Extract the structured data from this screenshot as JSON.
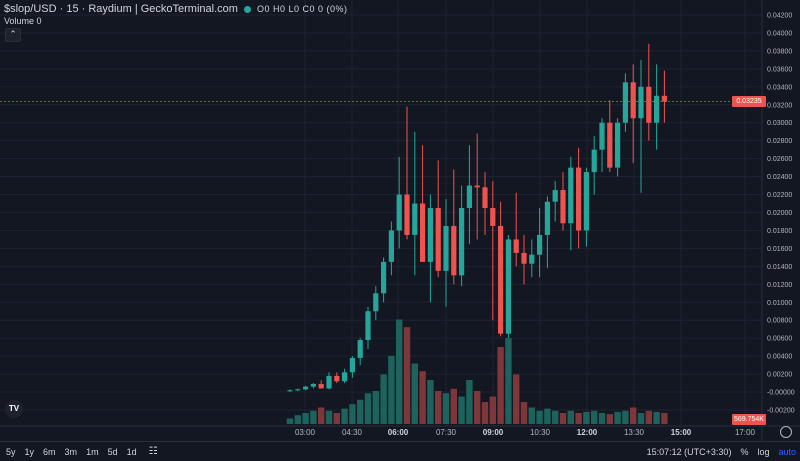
{
  "header": {
    "symbol": "$slop/USD · 15 · Raydium | GeckoTerminal.com",
    "ohlc_text": "O0 H0 L0 C0 0 (0%)",
    "volume_label": "Volume 0",
    "collapse_icon": "chevron-up-icon"
  },
  "price_tags": {
    "last_price": "0.03235",
    "volume_last": "569.754K"
  },
  "colors": {
    "up": "#26a69a",
    "down": "#ef5350",
    "background": "#131722",
    "price_line": "#ef5350"
  },
  "chart_data": {
    "type": "candlestick",
    "title": "$slop/USD · 15 · Raydium",
    "x_ticks": [
      "03:00",
      "04:30",
      "06:00",
      "07:30",
      "09:00",
      "10:30",
      "12:00",
      "13:30",
      "15:00",
      "17:00"
    ],
    "x_ticks_bold": [
      "06:00",
      "09:00",
      "12:00",
      "15:00"
    ],
    "y_ticks": [
      "0.04200",
      "0.04000",
      "0.03800",
      "0.03600",
      "0.03400",
      "0.03200",
      "0.03000",
      "0.02800",
      "0.02600",
      "0.02400",
      "0.02200",
      "0.02000",
      "0.01800",
      "0.01600",
      "0.01400",
      "0.01200",
      "0.01000",
      "0.00800",
      "0.00600",
      "0.00400",
      "0.00200",
      "-0.00000",
      "-0.00200"
    ],
    "y_tick_values": [
      0.042,
      0.04,
      0.038,
      0.036,
      0.034,
      0.032,
      0.03,
      0.028,
      0.026,
      0.024,
      0.022,
      0.02,
      0.018,
      0.016,
      0.014,
      0.012,
      0.01,
      0.008,
      0.006,
      0.004,
      0.002,
      0.0,
      -0.002
    ],
    "last_price": 0.03235,
    "candles": [
      {
        "o": 0.0001,
        "h": 0.0003,
        "l": 0.0,
        "c": 0.0002
      },
      {
        "o": 0.0002,
        "h": 0.0004,
        "l": 0.0001,
        "c": 0.0003
      },
      {
        "o": 0.0003,
        "h": 0.0007,
        "l": 0.0002,
        "c": 0.0006
      },
      {
        "o": 0.0006,
        "h": 0.001,
        "l": 0.0004,
        "c": 0.0009
      },
      {
        "o": 0.0009,
        "h": 0.0013,
        "l": 0.0004,
        "c": 0.0004
      },
      {
        "o": 0.0004,
        "h": 0.0022,
        "l": 0.0003,
        "c": 0.0018
      },
      {
        "o": 0.0018,
        "h": 0.0022,
        "l": 0.001,
        "c": 0.0012
      },
      {
        "o": 0.0012,
        "h": 0.0026,
        "l": 0.001,
        "c": 0.0022
      },
      {
        "o": 0.0022,
        "h": 0.004,
        "l": 0.0016,
        "c": 0.0038
      },
      {
        "o": 0.0038,
        "h": 0.006,
        "l": 0.003,
        "c": 0.0058
      },
      {
        "o": 0.0058,
        "h": 0.0095,
        "l": 0.0048,
        "c": 0.009
      },
      {
        "o": 0.009,
        "h": 0.0118,
        "l": 0.008,
        "c": 0.011
      },
      {
        "o": 0.011,
        "h": 0.015,
        "l": 0.01,
        "c": 0.0145
      },
      {
        "o": 0.0145,
        "h": 0.019,
        "l": 0.013,
        "c": 0.018
      },
      {
        "o": 0.018,
        "h": 0.0262,
        "l": 0.016,
        "c": 0.022
      },
      {
        "o": 0.022,
        "h": 0.0318,
        "l": 0.017,
        "c": 0.0175
      },
      {
        "o": 0.0175,
        "h": 0.029,
        "l": 0.013,
        "c": 0.021
      },
      {
        "o": 0.021,
        "h": 0.0275,
        "l": 0.0145,
        "c": 0.0145
      },
      {
        "o": 0.0145,
        "h": 0.022,
        "l": 0.01,
        "c": 0.0205
      },
      {
        "o": 0.0205,
        "h": 0.0258,
        "l": 0.0128,
        "c": 0.0135
      },
      {
        "o": 0.0135,
        "h": 0.0215,
        "l": 0.0095,
        "c": 0.0185
      },
      {
        "o": 0.0185,
        "h": 0.0248,
        "l": 0.012,
        "c": 0.013
      },
      {
        "o": 0.013,
        "h": 0.023,
        "l": 0.0118,
        "c": 0.0205
      },
      {
        "o": 0.0205,
        "h": 0.0275,
        "l": 0.0165,
        "c": 0.023
      },
      {
        "o": 0.023,
        "h": 0.0288,
        "l": 0.017,
        "c": 0.0228
      },
      {
        "o": 0.0228,
        "h": 0.0245,
        "l": 0.0175,
        "c": 0.0205
      },
      {
        "o": 0.0205,
        "h": 0.0235,
        "l": 0.008,
        "c": 0.0185
      },
      {
        "o": 0.0185,
        "h": 0.0212,
        "l": 0.0062,
        "c": 0.0065
      },
      {
        "o": 0.0065,
        "h": 0.0175,
        "l": 0.006,
        "c": 0.017
      },
      {
        "o": 0.017,
        "h": 0.0222,
        "l": 0.014,
        "c": 0.0155
      },
      {
        "o": 0.0155,
        "h": 0.0175,
        "l": 0.012,
        "c": 0.0143
      },
      {
        "o": 0.0143,
        "h": 0.017,
        "l": 0.0128,
        "c": 0.0153
      },
      {
        "o": 0.0153,
        "h": 0.0205,
        "l": 0.0128,
        "c": 0.0175
      },
      {
        "o": 0.0175,
        "h": 0.0218,
        "l": 0.0138,
        "c": 0.0212
      },
      {
        "o": 0.0212,
        "h": 0.0235,
        "l": 0.019,
        "c": 0.0225
      },
      {
        "o": 0.0225,
        "h": 0.0245,
        "l": 0.018,
        "c": 0.0188
      },
      {
        "o": 0.0188,
        "h": 0.0262,
        "l": 0.0158,
        "c": 0.025
      },
      {
        "o": 0.025,
        "h": 0.0272,
        "l": 0.016,
        "c": 0.018
      },
      {
        "o": 0.018,
        "h": 0.025,
        "l": 0.0162,
        "c": 0.0245
      },
      {
        "o": 0.0245,
        "h": 0.0285,
        "l": 0.022,
        "c": 0.027
      },
      {
        "o": 0.027,
        "h": 0.0305,
        "l": 0.0245,
        "c": 0.03
      },
      {
        "o": 0.03,
        "h": 0.0325,
        "l": 0.0245,
        "c": 0.025
      },
      {
        "o": 0.025,
        "h": 0.0305,
        "l": 0.024,
        "c": 0.03
      },
      {
        "o": 0.03,
        "h": 0.0355,
        "l": 0.029,
        "c": 0.0345
      },
      {
        "o": 0.0345,
        "h": 0.0365,
        "l": 0.0255,
        "c": 0.0305
      },
      {
        "o": 0.0305,
        "h": 0.037,
        "l": 0.0222,
        "c": 0.034
      },
      {
        "o": 0.034,
        "h": 0.0388,
        "l": 0.028,
        "c": 0.03
      },
      {
        "o": 0.03,
        "h": 0.0365,
        "l": 0.027,
        "c": 0.033
      },
      {
        "o": 0.033,
        "h": 0.0358,
        "l": 0.03,
        "c": 0.03235
      }
    ],
    "volume": [
      0.05,
      0.08,
      0.1,
      0.12,
      0.15,
      0.12,
      0.1,
      0.14,
      0.18,
      0.22,
      0.28,
      0.3,
      0.45,
      0.62,
      0.95,
      0.88,
      0.55,
      0.48,
      0.4,
      0.3,
      0.28,
      0.32,
      0.25,
      0.4,
      0.3,
      0.2,
      0.25,
      0.7,
      0.78,
      0.45,
      0.2,
      0.15,
      0.12,
      0.14,
      0.12,
      0.1,
      0.12,
      0.1,
      0.11,
      0.12,
      0.1,
      0.09,
      0.11,
      0.12,
      0.15,
      0.1,
      0.12,
      0.11,
      0.1
    ],
    "volume_direction": [
      "up",
      "up",
      "up",
      "up",
      "down",
      "up",
      "down",
      "up",
      "up",
      "up",
      "up",
      "up",
      "up",
      "up",
      "up",
      "down",
      "up",
      "down",
      "up",
      "down",
      "up",
      "down",
      "up",
      "up",
      "down",
      "down",
      "down",
      "down",
      "up",
      "down",
      "down",
      "up",
      "up",
      "up",
      "up",
      "down",
      "up",
      "down",
      "up",
      "up",
      "up",
      "down",
      "up",
      "up",
      "down",
      "up",
      "down",
      "up",
      "down"
    ],
    "grid": true
  },
  "bottom_bar": {
    "timeframes": [
      "5y",
      "1y",
      "6m",
      "3m",
      "1m",
      "5d",
      "1d"
    ],
    "time": "15:07:12 (UTC+3:30)",
    "percent": "%",
    "log": "log",
    "auto": "auto"
  },
  "logo_text": "TV"
}
